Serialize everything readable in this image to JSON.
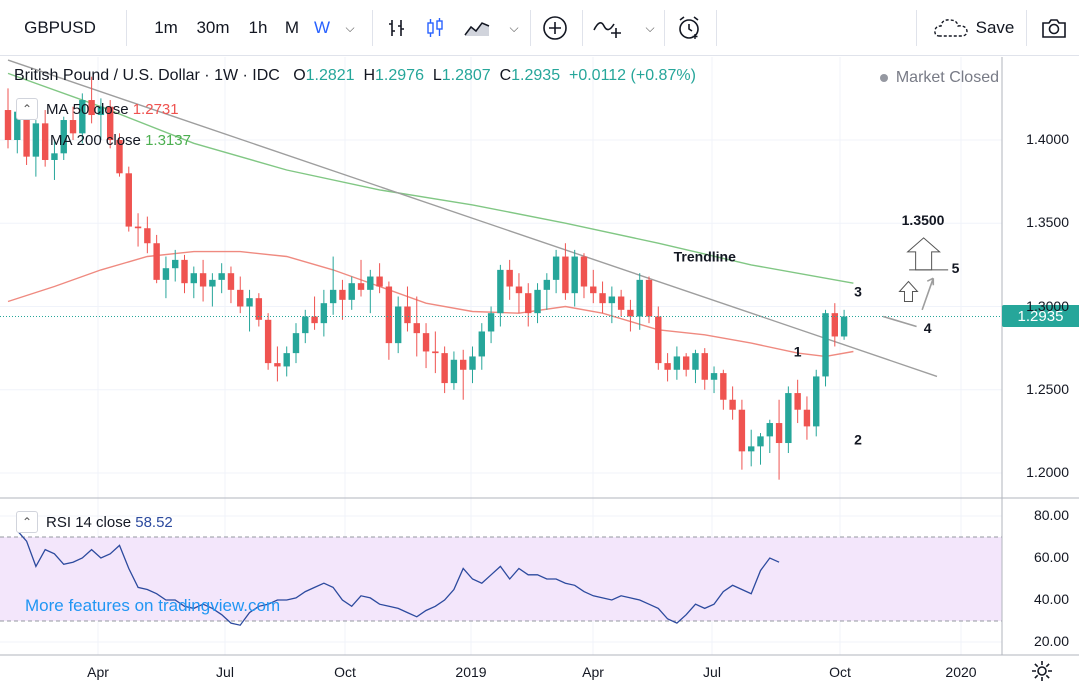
{
  "toolbar": {
    "symbol": "GBPUSD",
    "intervals": [
      "1m",
      "30m",
      "1h",
      "M",
      "W"
    ],
    "active_interval": "W",
    "save_label": "Save"
  },
  "header": {
    "title": "British Pound / U.S. Dollar · 1W · IDC",
    "o_label": "O",
    "o_value": "1.2821",
    "h_label": "H",
    "h_value": "1.2976",
    "l_label": "L",
    "l_value": "1.2807",
    "c_label": "C",
    "c_value": "1.2935",
    "change": "+0.0112 (+0.87%)",
    "market_status": "Market Closed"
  },
  "indicators": {
    "ma50": {
      "label": "MA",
      "params": "50 close",
      "value": "1.2731",
      "color": "#ef5350"
    },
    "ma200": {
      "label": "MA",
      "params": "200 close",
      "value": "1.3137",
      "color": "#4caf50"
    },
    "rsi": {
      "label": "RSI",
      "params": "14 close",
      "value": "58.52",
      "color": "#2c4a9e"
    }
  },
  "price_tag": "1.2935",
  "watermark": "More features on tradingview.com",
  "colors": {
    "up": "#26a69a",
    "down": "#ef5350",
    "trendline": "#9e9e9e",
    "rsi_band": "#f3e6fb"
  },
  "chart_data": [
    {
      "type": "candlestick",
      "title": "British Pound / U.S. Dollar · 1W · IDC",
      "ylim": [
        1.18,
        1.43
      ],
      "y_ticks": [
        "1.4000",
        "1.3500",
        "1.3000",
        "1.2500",
        "1.2000"
      ],
      "x_ticks": [
        "Apr",
        "Jul",
        "Oct",
        "2019",
        "Apr",
        "Jul",
        "Oct",
        "2020"
      ],
      "candles": [
        {
          "o": 1.418,
          "h": 1.431,
          "l": 1.395,
          "c": 1.4
        },
        {
          "o": 1.4,
          "h": 1.424,
          "l": 1.392,
          "c": 1.417
        },
        {
          "o": 1.417,
          "h": 1.421,
          "l": 1.385,
          "c": 1.39
        },
        {
          "o": 1.39,
          "h": 1.412,
          "l": 1.378,
          "c": 1.41
        },
        {
          "o": 1.41,
          "h": 1.418,
          "l": 1.384,
          "c": 1.388
        },
        {
          "o": 1.388,
          "h": 1.4,
          "l": 1.376,
          "c": 1.392
        },
        {
          "o": 1.392,
          "h": 1.414,
          "l": 1.388,
          "c": 1.412
        },
        {
          "o": 1.412,
          "h": 1.42,
          "l": 1.4,
          "c": 1.404
        },
        {
          "o": 1.404,
          "h": 1.428,
          "l": 1.398,
          "c": 1.424
        },
        {
          "o": 1.424,
          "h": 1.438,
          "l": 1.41,
          "c": 1.415
        },
        {
          "o": 1.415,
          "h": 1.425,
          "l": 1.4,
          "c": 1.42
        },
        {
          "o": 1.42,
          "h": 1.424,
          "l": 1.395,
          "c": 1.4
        },
        {
          "o": 1.4,
          "h": 1.404,
          "l": 1.378,
          "c": 1.38
        },
        {
          "o": 1.38,
          "h": 1.384,
          "l": 1.345,
          "c": 1.348
        },
        {
          "o": 1.348,
          "h": 1.356,
          "l": 1.336,
          "c": 1.347
        },
        {
          "o": 1.347,
          "h": 1.354,
          "l": 1.332,
          "c": 1.338
        },
        {
          "o": 1.338,
          "h": 1.343,
          "l": 1.314,
          "c": 1.316
        },
        {
          "o": 1.316,
          "h": 1.33,
          "l": 1.305,
          "c": 1.323
        },
        {
          "o": 1.323,
          "h": 1.334,
          "l": 1.315,
          "c": 1.328
        },
        {
          "o": 1.328,
          "h": 1.331,
          "l": 1.308,
          "c": 1.314
        },
        {
          "o": 1.314,
          "h": 1.324,
          "l": 1.305,
          "c": 1.32
        },
        {
          "o": 1.32,
          "h": 1.328,
          "l": 1.303,
          "c": 1.312
        },
        {
          "o": 1.312,
          "h": 1.32,
          "l": 1.3,
          "c": 1.316
        },
        {
          "o": 1.316,
          "h": 1.326,
          "l": 1.308,
          "c": 1.32
        },
        {
          "o": 1.32,
          "h": 1.324,
          "l": 1.302,
          "c": 1.31
        },
        {
          "o": 1.31,
          "h": 1.318,
          "l": 1.296,
          "c": 1.3
        },
        {
          "o": 1.3,
          "h": 1.31,
          "l": 1.285,
          "c": 1.305
        },
        {
          "o": 1.305,
          "h": 1.308,
          "l": 1.288,
          "c": 1.292
        },
        {
          "o": 1.292,
          "h": 1.296,
          "l": 1.262,
          "c": 1.266
        },
        {
          "o": 1.266,
          "h": 1.276,
          "l": 1.255,
          "c": 1.264
        },
        {
          "o": 1.264,
          "h": 1.276,
          "l": 1.258,
          "c": 1.272
        },
        {
          "o": 1.272,
          "h": 1.29,
          "l": 1.266,
          "c": 1.284
        },
        {
          "o": 1.284,
          "h": 1.298,
          "l": 1.278,
          "c": 1.294
        },
        {
          "o": 1.294,
          "h": 1.306,
          "l": 1.286,
          "c": 1.29
        },
        {
          "o": 1.29,
          "h": 1.31,
          "l": 1.282,
          "c": 1.302
        },
        {
          "o": 1.302,
          "h": 1.33,
          "l": 1.295,
          "c": 1.31
        },
        {
          "o": 1.31,
          "h": 1.316,
          "l": 1.292,
          "c": 1.304
        },
        {
          "o": 1.304,
          "h": 1.318,
          "l": 1.298,
          "c": 1.314
        },
        {
          "o": 1.314,
          "h": 1.328,
          "l": 1.306,
          "c": 1.31
        },
        {
          "o": 1.31,
          "h": 1.322,
          "l": 1.296,
          "c": 1.318
        },
        {
          "o": 1.318,
          "h": 1.326,
          "l": 1.308,
          "c": 1.312
        },
        {
          "o": 1.312,
          "h": 1.315,
          "l": 1.268,
          "c": 1.278
        },
        {
          "o": 1.278,
          "h": 1.306,
          "l": 1.272,
          "c": 1.3
        },
        {
          "o": 1.3,
          "h": 1.312,
          "l": 1.285,
          "c": 1.29
        },
        {
          "o": 1.29,
          "h": 1.306,
          "l": 1.27,
          "c": 1.284
        },
        {
          "o": 1.284,
          "h": 1.29,
          "l": 1.263,
          "c": 1.273
        },
        {
          "o": 1.273,
          "h": 1.285,
          "l": 1.26,
          "c": 1.272
        },
        {
          "o": 1.272,
          "h": 1.276,
          "l": 1.248,
          "c": 1.254
        },
        {
          "o": 1.254,
          "h": 1.273,
          "l": 1.25,
          "c": 1.268
        },
        {
          "o": 1.268,
          "h": 1.274,
          "l": 1.244,
          "c": 1.262
        },
        {
          "o": 1.262,
          "h": 1.276,
          "l": 1.254,
          "c": 1.27
        },
        {
          "o": 1.27,
          "h": 1.29,
          "l": 1.262,
          "c": 1.285
        },
        {
          "o": 1.285,
          "h": 1.3,
          "l": 1.278,
          "c": 1.296
        },
        {
          "o": 1.296,
          "h": 1.325,
          "l": 1.288,
          "c": 1.322
        },
        {
          "o": 1.322,
          "h": 1.328,
          "l": 1.304,
          "c": 1.312
        },
        {
          "o": 1.312,
          "h": 1.32,
          "l": 1.296,
          "c": 1.308
        },
        {
          "o": 1.308,
          "h": 1.314,
          "l": 1.288,
          "c": 1.296
        },
        {
          "o": 1.296,
          "h": 1.314,
          "l": 1.29,
          "c": 1.31
        },
        {
          "o": 1.31,
          "h": 1.32,
          "l": 1.298,
          "c": 1.316
        },
        {
          "o": 1.316,
          "h": 1.334,
          "l": 1.308,
          "c": 1.33
        },
        {
          "o": 1.33,
          "h": 1.338,
          "l": 1.304,
          "c": 1.308
        },
        {
          "o": 1.308,
          "h": 1.334,
          "l": 1.3,
          "c": 1.33
        },
        {
          "o": 1.33,
          "h": 1.332,
          "l": 1.305,
          "c": 1.312
        },
        {
          "o": 1.312,
          "h": 1.322,
          "l": 1.302,
          "c": 1.308
        },
        {
          "o": 1.308,
          "h": 1.315,
          "l": 1.296,
          "c": 1.302
        },
        {
          "o": 1.302,
          "h": 1.312,
          "l": 1.29,
          "c": 1.306
        },
        {
          "o": 1.306,
          "h": 1.31,
          "l": 1.294,
          "c": 1.298
        },
        {
          "o": 1.298,
          "h": 1.304,
          "l": 1.285,
          "c": 1.294
        },
        {
          "o": 1.294,
          "h": 1.32,
          "l": 1.286,
          "c": 1.316
        },
        {
          "o": 1.316,
          "h": 1.318,
          "l": 1.29,
          "c": 1.294
        },
        {
          "o": 1.294,
          "h": 1.3,
          "l": 1.262,
          "c": 1.266
        },
        {
          "o": 1.266,
          "h": 1.272,
          "l": 1.255,
          "c": 1.262
        },
        {
          "o": 1.262,
          "h": 1.276,
          "l": 1.256,
          "c": 1.27
        },
        {
          "o": 1.27,
          "h": 1.272,
          "l": 1.258,
          "c": 1.262
        },
        {
          "o": 1.262,
          "h": 1.274,
          "l": 1.254,
          "c": 1.272
        },
        {
          "o": 1.272,
          "h": 1.275,
          "l": 1.25,
          "c": 1.256
        },
        {
          "o": 1.256,
          "h": 1.264,
          "l": 1.248,
          "c": 1.26
        },
        {
          "o": 1.26,
          "h": 1.262,
          "l": 1.238,
          "c": 1.244
        },
        {
          "o": 1.244,
          "h": 1.252,
          "l": 1.232,
          "c": 1.238
        },
        {
          "o": 1.238,
          "h": 1.244,
          "l": 1.202,
          "c": 1.213
        },
        {
          "o": 1.213,
          "h": 1.226,
          "l": 1.204,
          "c": 1.216
        },
        {
          "o": 1.216,
          "h": 1.224,
          "l": 1.205,
          "c": 1.222
        },
        {
          "o": 1.222,
          "h": 1.232,
          "l": 1.212,
          "c": 1.23
        },
        {
          "o": 1.23,
          "h": 1.244,
          "l": 1.196,
          "c": 1.218
        },
        {
          "o": 1.218,
          "h": 1.252,
          "l": 1.212,
          "c": 1.248
        },
        {
          "o": 1.248,
          "h": 1.256,
          "l": 1.23,
          "c": 1.238
        },
        {
          "o": 1.238,
          "h": 1.246,
          "l": 1.22,
          "c": 1.228
        },
        {
          "o": 1.228,
          "h": 1.262,
          "l": 1.222,
          "c": 1.258
        },
        {
          "o": 1.258,
          "h": 1.298,
          "l": 1.252,
          "c": 1.296
        },
        {
          "o": 1.296,
          "h": 1.302,
          "l": 1.276,
          "c": 1.282
        },
        {
          "o": 1.282,
          "h": 1.298,
          "l": 1.28,
          "c": 1.294
        }
      ],
      "ma50": [
        [
          0,
          1.303
        ],
        [
          5,
          1.312
        ],
        [
          10,
          1.322
        ],
        [
          15,
          1.33
        ],
        [
          20,
          1.333
        ],
        [
          25,
          1.333
        ],
        [
          30,
          1.33
        ],
        [
          35,
          1.322
        ],
        [
          40,
          1.312
        ],
        [
          45,
          1.302
        ],
        [
          50,
          1.297
        ],
        [
          55,
          1.296
        ],
        [
          60,
          1.3
        ],
        [
          64,
          1.296
        ],
        [
          70,
          1.286
        ],
        [
          75,
          1.283
        ],
        [
          80,
          1.278
        ],
        [
          85,
          1.272
        ],
        [
          88,
          1.27
        ],
        [
          91,
          1.273
        ]
      ],
      "ma200": [
        [
          0,
          1.44
        ],
        [
          10,
          1.42
        ],
        [
          20,
          1.398
        ],
        [
          30,
          1.382
        ],
        [
          40,
          1.37
        ],
        [
          50,
          1.361
        ],
        [
          60,
          1.35
        ],
        [
          70,
          1.338
        ],
        [
          80,
          1.325
        ],
        [
          91,
          1.314
        ]
      ],
      "trendline": [
        [
          0,
          1.448
        ],
        [
          100,
          1.258
        ]
      ],
      "annotations": [
        {
          "text": "Trendline",
          "x": 75,
          "y": 1.327
        },
        {
          "text": "1",
          "x": 85,
          "y": 1.27
        },
        {
          "text": "2",
          "x": 91.5,
          "y": 1.217
        },
        {
          "text": "3",
          "x": 91.5,
          "y": 1.306
        },
        {
          "text": "4",
          "x": 99,
          "y": 1.284
        },
        {
          "text": "5",
          "x": 102,
          "y": 1.32
        },
        {
          "text": "1.3500",
          "x": 98.5,
          "y": 1.349
        }
      ]
    },
    {
      "type": "line",
      "title": "RSI",
      "ylim": [
        20,
        80
      ],
      "y_ticks": [
        "80.00",
        "60.00",
        "40.00",
        "20.00"
      ],
      "band": [
        30,
        70
      ],
      "values": [
        73,
        68,
        56,
        64,
        62,
        57,
        58,
        60,
        64,
        60,
        62,
        66,
        55,
        46,
        45,
        43,
        40,
        40,
        37,
        36,
        38,
        36,
        33,
        29,
        28,
        34,
        37,
        38,
        40,
        40,
        41,
        44,
        46,
        48,
        46,
        40,
        37,
        42,
        41,
        38,
        37,
        36,
        34,
        32,
        35,
        37,
        40,
        45,
        55,
        50,
        48,
        52,
        56,
        50,
        55,
        52,
        52,
        50,
        50,
        48,
        47,
        44,
        42,
        41,
        40,
        42,
        41,
        40,
        38,
        36,
        31,
        29,
        33,
        38,
        36,
        38,
        44,
        47,
        45,
        43,
        54,
        60,
        58
      ],
      "values_x_start": 0,
      "note_values_index": "weekly"
    }
  ]
}
